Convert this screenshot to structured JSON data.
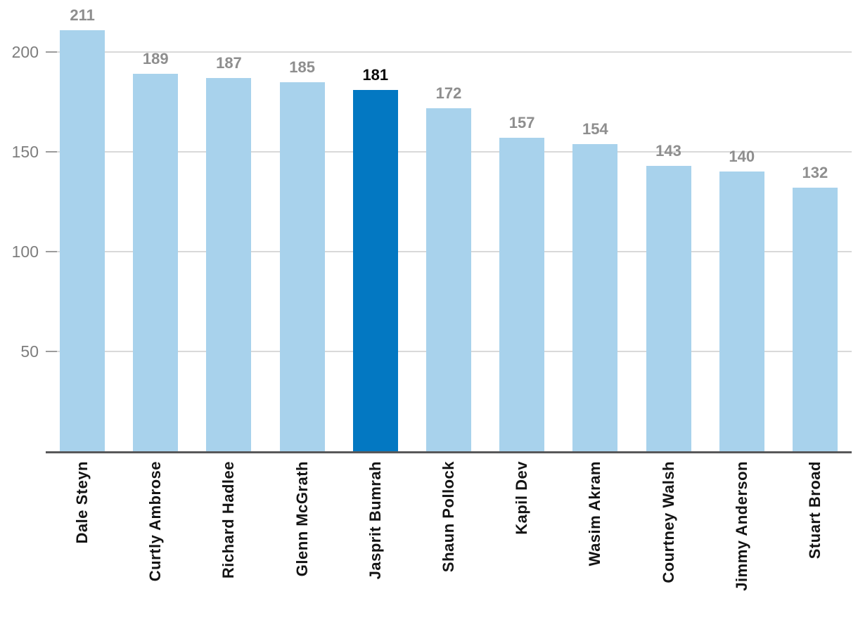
{
  "chart_data": {
    "type": "bar",
    "categories": [
      "Dale Steyn",
      "Curtly Ambrose",
      "Richard Hadlee",
      "Glenn McGrath",
      "Jasprit Bumrah",
      "Shaun Pollock",
      "Kapil Dev",
      "Wasim Akram",
      "Courtney Walsh",
      "Jimmy Anderson",
      "Stuart Broad"
    ],
    "values": [
      211,
      189,
      187,
      185,
      181,
      172,
      157,
      154,
      143,
      140,
      132
    ],
    "value_labels": [
      "211",
      "189",
      "187",
      "185",
      "181",
      "172",
      "157",
      "154",
      "143",
      "140",
      "132"
    ],
    "highlight_index": 4,
    "highlight_category": "Jasprit Bumrah",
    "title": "",
    "xlabel": "",
    "ylabel": "",
    "yticks": [
      50,
      100,
      150,
      200
    ],
    "ylim": [
      0,
      225
    ],
    "grid": "horizontal",
    "legend": "none",
    "x_label_rotation": "vertical-bottom-to-top",
    "colors": {
      "bar": "#a8d2ec",
      "highlight_bar": "#0378c2",
      "value_label": "#8e8e8e",
      "highlight_value_label": "#0a0a0a",
      "y_tick_label": "#7d7d7d",
      "x_tick_label": "#141414",
      "gridline": "#d9d9d9",
      "tick_mark": "#9c9c9c",
      "axis_line": "#58585a",
      "background": "#ffffff"
    }
  }
}
